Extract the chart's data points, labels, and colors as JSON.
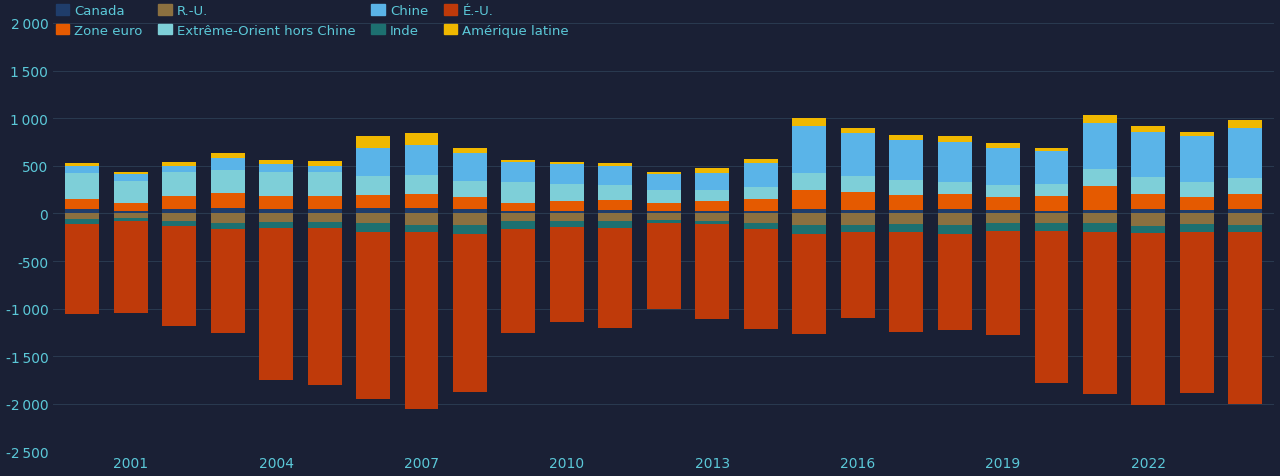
{
  "years": [
    2000,
    2001,
    2002,
    2003,
    2004,
    2005,
    2006,
    2007,
    2008,
    2009,
    2010,
    2011,
    2012,
    2013,
    2014,
    2015,
    2016,
    2017,
    2018,
    2019,
    2020,
    2021,
    2022,
    2023,
    2024
  ],
  "canada": [
    50,
    30,
    50,
    60,
    50,
    50,
    60,
    60,
    50,
    30,
    30,
    40,
    30,
    30,
    30,
    50,
    40,
    40,
    50,
    40,
    30,
    40,
    50,
    40,
    50
  ],
  "zone_euro": [
    100,
    80,
    130,
    150,
    130,
    130,
    130,
    140,
    120,
    80,
    100,
    100,
    80,
    100,
    120,
    200,
    180,
    150,
    150,
    130,
    150,
    250,
    150,
    130,
    150
  ],
  "rbu": [
    -60,
    -50,
    -80,
    -100,
    -90,
    -90,
    -100,
    -120,
    -120,
    -80,
    -80,
    -80,
    -70,
    -80,
    -100,
    -120,
    -120,
    -110,
    -120,
    -100,
    -100,
    -100,
    -130,
    -110,
    -120
  ],
  "exo_hors": [
    270,
    230,
    250,
    250,
    250,
    250,
    200,
    200,
    170,
    220,
    180,
    160,
    140,
    120,
    130,
    170,
    170,
    160,
    130,
    130,
    130,
    180,
    180,
    160,
    170
  ],
  "chine": [
    80,
    70,
    70,
    120,
    90,
    70,
    300,
    320,
    290,
    210,
    210,
    200,
    160,
    170,
    250,
    500,
    450,
    420,
    420,
    390,
    350,
    480,
    480,
    480,
    530
  ],
  "inde": [
    -50,
    -30,
    -50,
    -60,
    -60,
    -60,
    -100,
    -80,
    -100,
    -80,
    -60,
    -70,
    -30,
    -30,
    -60,
    -100,
    -80,
    -80,
    -100,
    -80,
    -80,
    -100,
    -80,
    -80,
    -80
  ],
  "eu": [
    -950,
    -960,
    -1050,
    -1100,
    -1600,
    -1650,
    -1750,
    -1850,
    -1650,
    -1100,
    -1000,
    -1050,
    -900,
    -1000,
    -1050,
    -1050,
    -900,
    -1050,
    -1000,
    -1100,
    -1600,
    -1700,
    -1800,
    -1700,
    -1800
  ],
  "am_latine": [
    30,
    30,
    40,
    50,
    40,
    50,
    120,
    120,
    60,
    20,
    20,
    30,
    20,
    60,
    40,
    80,
    60,
    50,
    60,
    50,
    30,
    80,
    60,
    50,
    80
  ],
  "color_canada": "#1f3d6b",
  "color_zone_euro": "#e55a00",
  "color_rbu": "#8b7040",
  "color_exo_hors": "#7ecfd8",
  "color_chine": "#5ab4e8",
  "color_inde": "#1d7070",
  "color_eu": "#bf3a0a",
  "color_am_latine": "#f0b800",
  "bg_color": "#1a2035",
  "text_color": "#5bc8d8",
  "grid_color": "#2a3a50",
  "bar_width": 0.7,
  "ylim": [
    -2500,
    2000
  ],
  "yticks": [
    -2500,
    -2000,
    -1500,
    -1000,
    -500,
    0,
    500,
    1000,
    1500,
    2000
  ]
}
